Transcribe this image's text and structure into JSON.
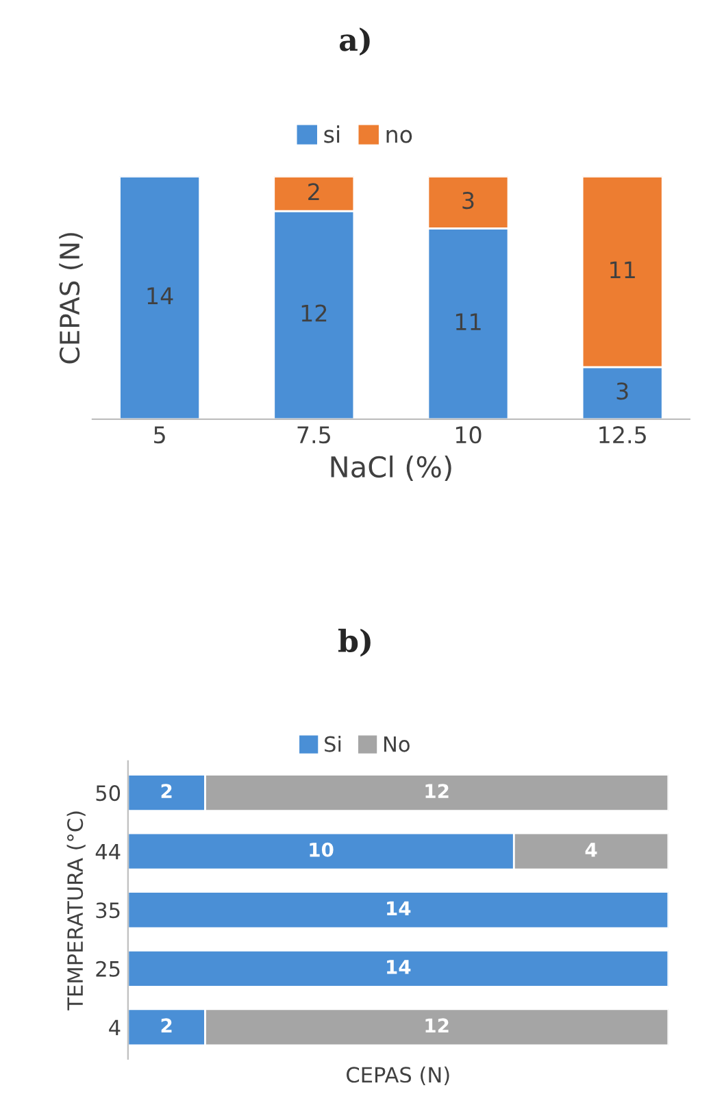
{
  "chart_data": [
    {
      "type": "bar",
      "title": "a)",
      "xlabel": "NaCl (%)",
      "ylabel": "CEPAS (N)",
      "stacked": true,
      "data_labels": true,
      "legend": "top",
      "grid": false,
      "categories": [
        "5",
        "7.5",
        "10",
        "12.5"
      ],
      "series": [
        {
          "name": "si",
          "color": "#4a8fd6",
          "values": [
            14,
            12,
            11,
            3
          ]
        },
        {
          "name": "no",
          "color": "#ed7d31",
          "values": [
            null,
            2,
            3,
            11
          ]
        }
      ]
    },
    {
      "type": "bar",
      "title": "b)",
      "xlabel": "CEPAS (N)",
      "ylabel": "TEMPERATURA (°C)",
      "stacked": true,
      "orientation": "horizontal",
      "data_labels": true,
      "legend": "top",
      "grid": false,
      "categories": [
        "50",
        "44",
        "35",
        "25",
        "4"
      ],
      "series": [
        {
          "name": "Si",
          "color": "#4a8fd6",
          "values": [
            2,
            10,
            14,
            14,
            2
          ]
        },
        {
          "name": "No",
          "color": "#a5a5a5",
          "values": [
            12,
            4,
            null,
            null,
            12
          ]
        }
      ]
    }
  ]
}
